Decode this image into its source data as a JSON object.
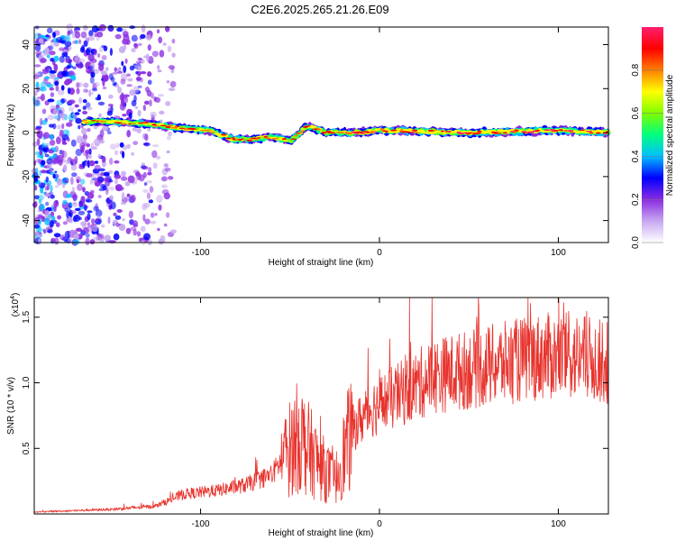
{
  "title": "C2E6.2025.265.21.26.E09",
  "chart_data": [
    {
      "type": "heatmap",
      "xlabel": "Height of straight line (km)",
      "ylabel": "Frequency (Hz)",
      "xlim": [
        -193,
        128
      ],
      "ylim": [
        -50,
        48
      ],
      "x_ticks": [
        -100,
        0,
        100
      ],
      "x_tick_labels": [
        "-100",
        "0",
        "100"
      ],
      "y_ticks": [
        -40,
        -20,
        0,
        20,
        40
      ],
      "y_tick_labels": [
        "-40",
        "-20",
        "0",
        "20",
        "40"
      ],
      "ridge": [
        {
          "x": -165,
          "y": 5
        },
        {
          "x": -150,
          "y": 5
        },
        {
          "x": -130,
          "y": 4
        },
        {
          "x": -110,
          "y": 2
        },
        {
          "x": -95,
          "y": 1
        },
        {
          "x": -82,
          "y": -3
        },
        {
          "x": -72,
          "y": -3
        },
        {
          "x": -60,
          "y": -2
        },
        {
          "x": -50,
          "y": -4
        },
        {
          "x": -40,
          "y": 3
        },
        {
          "x": -30,
          "y": 0
        },
        {
          "x": -10,
          "y": 0
        },
        {
          "x": 0,
          "y": 1
        },
        {
          "x": 50,
          "y": 0
        },
        {
          "x": 100,
          "y": 1
        },
        {
          "x": 128,
          "y": 0
        }
      ],
      "noise_region": [
        -193,
        -115
      ],
      "colorbar": {
        "label": "Normalized spectral amplitude",
        "range": [
          0,
          1
        ],
        "ticks": [
          0.0,
          0.2,
          0.4,
          0.6,
          0.8
        ],
        "tick_labels": [
          "0.0",
          "0.2",
          "0.4",
          "0.6",
          "0.8"
        ],
        "colors": [
          "#ffffff",
          "#c7a8f0",
          "#8a2be2",
          "#0000ff",
          "#00bfff",
          "#00ff7f",
          "#7fff00",
          "#ffff00",
          "#ff7f00",
          "#ff0000",
          "#ff1f6f"
        ]
      }
    },
    {
      "type": "line",
      "xlabel": "Height of straight line (km)",
      "ylabel": "SNR (10 * v/v)",
      "scale_label": "(x10",
      "scale_exp": "4",
      "scale_close": ")",
      "xlim": [
        -193,
        128
      ],
      "ylim": [
        0,
        16500
      ],
      "x_ticks": [
        -100,
        0,
        100
      ],
      "x_tick_labels": [
        "-100",
        "0",
        "100"
      ],
      "y_ticks": [
        5000,
        10000,
        15000
      ],
      "y_tick_labels": [
        "0.5",
        "1.0",
        "1.5"
      ],
      "color": "#e8332d",
      "envelope": [
        {
          "x": -193,
          "y": 150
        },
        {
          "x": -150,
          "y": 350
        },
        {
          "x": -125,
          "y": 600
        },
        {
          "x": -110,
          "y": 1500
        },
        {
          "x": -90,
          "y": 1800
        },
        {
          "x": -75,
          "y": 2200
        },
        {
          "x": -60,
          "y": 3000
        },
        {
          "x": -45,
          "y": 6000
        },
        {
          "x": -35,
          "y": 4000
        },
        {
          "x": -25,
          "y": 2500
        },
        {
          "x": -15,
          "y": 6500
        },
        {
          "x": -5,
          "y": 8000
        },
        {
          "x": 10,
          "y": 9000
        },
        {
          "x": 30,
          "y": 10500
        },
        {
          "x": 50,
          "y": 11000
        },
        {
          "x": 70,
          "y": 11500
        },
        {
          "x": 90,
          "y": 12000
        },
        {
          "x": 110,
          "y": 12000
        },
        {
          "x": 128,
          "y": 11500
        }
      ]
    }
  ]
}
